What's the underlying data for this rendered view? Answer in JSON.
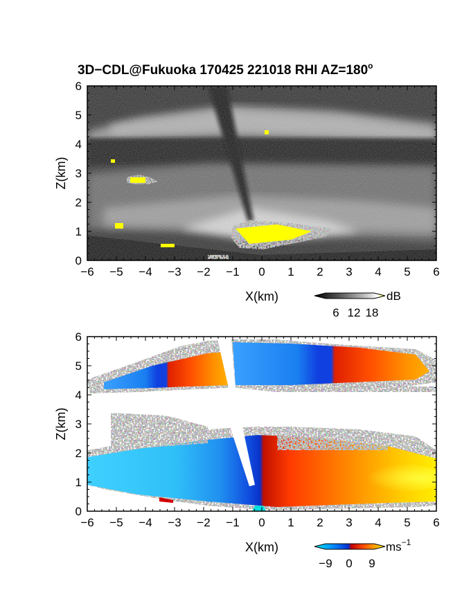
{
  "figure": {
    "title": "3D−CDL@Fukuoka 170425 221018 RHI AZ=180",
    "title_degree": "o"
  },
  "chart_data": [
    {
      "type": "heatmap",
      "id": "reflectivity",
      "xlabel": "X(km)",
      "ylabel": "Z(km)",
      "xlim": [
        -6,
        6
      ],
      "ylim": [
        0,
        6
      ],
      "xticks": [
        -6,
        -5,
        -4,
        -3,
        -2,
        -1,
        0,
        1,
        2,
        3,
        4,
        5,
        6
      ],
      "yticks": [
        0,
        1,
        2,
        3,
        4,
        5,
        6
      ],
      "colorbar": {
        "unit": "dB",
        "ticks": [
          "6",
          "12",
          "18"
        ],
        "colors": [
          "#000000",
          "#333333",
          "#777777",
          "#aaaaaa",
          "#dddddd",
          "#ffffff",
          "#ffff00"
        ]
      },
      "features": [
        {
          "kind": "no-signal layer",
          "z_range": [
            3.6,
            4.3
          ],
          "x_range": [
            -6,
            6
          ]
        },
        {
          "kind": "bright band",
          "z_range": [
            4.3,
            5.5
          ],
          "x_range": [
            -5.8,
            6
          ]
        },
        {
          "kind": "strong echo",
          "x_range": [
            -1,
            2.5
          ],
          "z_range": [
            0.4,
            1.3
          ],
          "dB": 18
        },
        {
          "kind": "strong echo",
          "x_range": [
            -4.6,
            -3.4
          ],
          "z_range": [
            2.6,
            2.9
          ],
          "dB": 18
        },
        {
          "kind": "beam blockage",
          "x_range": [
            -1.6,
            -0.3
          ],
          "z_range": [
            0,
            6
          ]
        }
      ]
    },
    {
      "type": "heatmap",
      "id": "doppler-velocity",
      "xlabel": "X(km)",
      "ylabel": "Z(km)",
      "xlim": [
        -6,
        6
      ],
      "ylim": [
        0,
        6
      ],
      "xticks": [
        -6,
        -5,
        -4,
        -3,
        -2,
        -1,
        0,
        1,
        2,
        3,
        4,
        5,
        6
      ],
      "yticks": [
        0,
        1,
        2,
        3,
        4,
        5,
        6
      ],
      "colorbar": {
        "unit": "ms",
        "unit_exponent": "−1",
        "ticks": [
          "−9",
          "0",
          "9"
        ],
        "colors": [
          "#00e0e0",
          "#00a0ff",
          "#0040e0",
          "#c00000",
          "#ff3000",
          "#ff8000",
          "#ffd000",
          "#ffff00"
        ]
      },
      "layers": [
        {
          "name": "upper",
          "z_range": [
            4.2,
            5.9
          ]
        },
        {
          "name": "lower",
          "z_range": [
            0,
            2.9
          ]
        }
      ],
      "velocity_m_s": {
        "x_negative": -9,
        "x_0": 0,
        "x_positive": 9
      }
    }
  ]
}
